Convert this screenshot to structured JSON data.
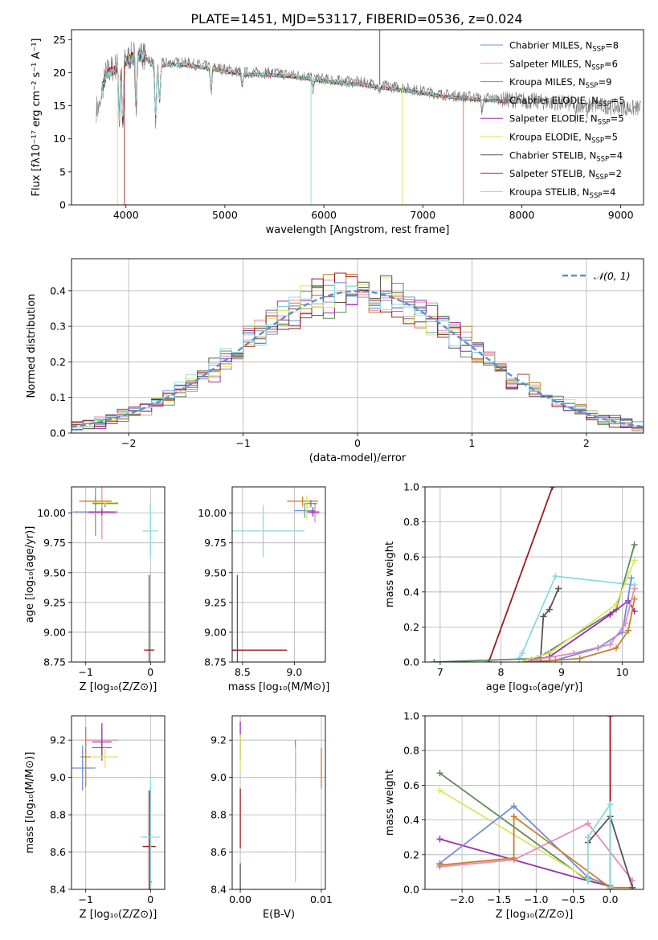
{
  "title": "PLATE=1451, MJD=53117, FIBERID=0536, z=0.024",
  "colors": {
    "Chabrier MILES": "#6f8fd8",
    "Salpeter MILES": "#e88bb9",
    "Kroupa MILES": "#c8802a",
    "Chabrier ELODIE": "#5e8a5e",
    "Salpeter ELODIE": "#9b2fae",
    "Kroupa ELODIE": "#d8e85a",
    "Chabrier STELIB": "#555555",
    "Salpeter STELIB": "#a01818",
    "Kroupa STELIB": "#88dce0",
    "orange": "#e07a1f",
    "gauss": "#5b8ed6"
  },
  "chart_data": [
    {
      "id": "spectrum",
      "type": "line",
      "xlabel": "wavelength [Angstrom, rest frame]",
      "ylabel": "Flux [fλ10⁻¹⁷ erg cm⁻² s⁻¹ A⁻¹]",
      "xlim": [
        3450,
        9230
      ],
      "ylim": [
        0,
        26.5
      ],
      "xticks": [
        4000,
        5000,
        6000,
        7000,
        8000,
        9000
      ],
      "yticks": [
        0,
        5,
        10,
        15,
        20,
        25
      ],
      "legend_position": "top-right",
      "legend": [
        {
          "text": "Chabrier MILES, N",
          "sub": "SSP",
          "suffix": "=8"
        },
        {
          "text": "Salpeter MILES, N",
          "sub": "SSP",
          "suffix": "=6"
        },
        {
          "text": "Kroupa MILES, N",
          "sub": "SSP",
          "suffix": "=9"
        },
        {
          "text": "Chabrier ELODIE, N",
          "sub": "SSP",
          "suffix": "=5"
        },
        {
          "text": "Salpeter ELODIE, N",
          "sub": "SSP",
          "suffix": "=5"
        },
        {
          "text": "Kroupa ELODIE, N",
          "sub": "SSP",
          "suffix": "=5"
        },
        {
          "text": "Chabrier STELIB, N",
          "sub": "SSP",
          "suffix": "=4"
        },
        {
          "text": "Salpeter STELIB, N",
          "sub": "SSP",
          "suffix": "=2"
        },
        {
          "text": "Kroupa STELIB, N",
          "sub": "SSP",
          "suffix": "=4"
        }
      ],
      "model_range": [
        3750,
        7950
      ],
      "envelope": [
        [
          3750,
          17
        ],
        [
          3800,
          20
        ],
        [
          3900,
          21
        ],
        [
          4000,
          22
        ],
        [
          4100,
          23
        ],
        [
          4200,
          22.5
        ],
        [
          4300,
          21
        ],
        [
          4400,
          21.5
        ],
        [
          4600,
          21.5
        ],
        [
          4800,
          21
        ],
        [
          5000,
          20.5
        ],
        [
          5200,
          20
        ],
        [
          5400,
          20
        ],
        [
          5600,
          19.8
        ],
        [
          5800,
          19.5
        ],
        [
          6000,
          19
        ],
        [
          6200,
          18.7
        ],
        [
          6400,
          18.5
        ],
        [
          6600,
          18
        ],
        [
          6800,
          17.7
        ],
        [
          7000,
          17.2
        ],
        [
          7200,
          16.7
        ],
        [
          7400,
          16.4
        ],
        [
          7600,
          16.2
        ],
        [
          7800,
          16
        ],
        [
          8000,
          15.8
        ],
        [
          8200,
          15.6
        ],
        [
          8400,
          15.4
        ],
        [
          8600,
          15.2
        ],
        [
          8800,
          15
        ],
        [
          9000,
          14.8
        ],
        [
          9100,
          14.6
        ]
      ],
      "absorptions": [
        [
          3934,
          12
        ],
        [
          3968,
          11
        ],
        [
          4102,
          14
        ],
        [
          4300,
          12
        ],
        [
          4340,
          15
        ],
        [
          4861,
          17
        ],
        [
          5175,
          17.8
        ],
        [
          5890,
          17.5
        ],
        [
          6563,
          17
        ],
        [
          7600,
          14
        ],
        [
          8542,
          13
        ],
        [
          8662,
          13
        ]
      ],
      "spikes": [
        [
          3915,
          0,
          "Kroupa ELODIE"
        ],
        [
          3985,
          0,
          "Salpeter STELIB"
        ],
        [
          5870,
          0,
          "Kroupa STELIB"
        ],
        [
          6790,
          0,
          "Kroupa ELODIE"
        ],
        [
          7410,
          0,
          "Kroupa MILES"
        ],
        [
          6565,
          26.5,
          "Chabrier STELIB"
        ]
      ]
    },
    {
      "id": "residuals",
      "type": "bar",
      "xlabel": "(data-model)/error",
      "ylabel": "Normed distribution",
      "xlim": [
        -2.5,
        2.5
      ],
      "ylim": [
        0,
        0.49
      ],
      "xticks": [
        -2,
        -1,
        0,
        1,
        2
      ],
      "yticks": [
        0.0,
        0.1,
        0.2,
        0.3,
        0.4
      ],
      "bin_width": 0.1,
      "legend": [
        {
          "text": "𝒩(0, 1)"
        }
      ],
      "legend_position": "top-right",
      "gaussian": {
        "mean": 0,
        "sigma": 1
      }
    },
    {
      "id": "z-age",
      "type": "scatter",
      "xlabel": "Z [log₁₀(Z/Z⊙)]",
      "ylabel": "age  [log₁₀(age/yr)]",
      "xlim": [
        -1.22,
        0.22
      ],
      "ylim": [
        8.75,
        10.22
      ],
      "xticks": [
        -1,
        0
      ],
      "yticks": [
        8.75,
        9.0,
        9.25,
        9.5,
        9.75,
        10.0
      ],
      "points": [
        {
          "model": "Chabrier MILES",
          "x": -0.85,
          "y": 10.01,
          "ex": 0.35,
          "ey": 0.2
        },
        {
          "model": "Salpeter MILES",
          "x": -0.75,
          "y": 10.0,
          "ex": 0.22,
          "ey": 0.22
        },
        {
          "model": "Kroupa MILES",
          "x": -0.85,
          "y": 10.1,
          "ex": 0.25,
          "ey": 0.04
        },
        {
          "model": "Chabrier ELODIE",
          "x": -0.7,
          "y": 10.08,
          "ex": 0.2,
          "ey": 0.03
        },
        {
          "model": "Salpeter ELODIE",
          "x": -0.75,
          "y": 10.01,
          "ex": 0.2,
          "ey": 0.03
        },
        {
          "model": "Kroupa ELODIE",
          "x": -0.7,
          "y": 10.09,
          "ex": 0.2,
          "ey": 0.02
        },
        {
          "model": "Chabrier STELIB",
          "x": -0.02,
          "y": 8.85,
          "ex": 0.02,
          "ey": 0.63
        },
        {
          "model": "Salpeter STELIB",
          "x": -0.02,
          "y": 8.85,
          "ex": 0.08,
          "ey": 0.0
        },
        {
          "model": "Kroupa STELIB",
          "x": 0.0,
          "y": 9.85,
          "ex": 0.12,
          "ey": 0.22
        }
      ]
    },
    {
      "id": "mass-age",
      "type": "scatter",
      "xlabel": "mass [log₁₀(M/M⊙)]",
      "ylabel": "",
      "xlim": [
        8.4,
        9.3
      ],
      "ylim": [
        8.75,
        10.22
      ],
      "xticks": [
        8.5,
        9.0
      ],
      "yticks": [
        8.75,
        9.0,
        9.25,
        9.5,
        9.75,
        10.0
      ],
      "points": [
        {
          "model": "Chabrier MILES",
          "x": 9.1,
          "y": 10.02,
          "ex": 0.1,
          "ey": 0.06
        },
        {
          "model": "Salpeter MILES",
          "x": 9.2,
          "y": 10.0,
          "ex": 0.05,
          "ey": 0.08
        },
        {
          "model": "Kroupa MILES",
          "x": 9.08,
          "y": 10.1,
          "ex": 0.15,
          "ey": 0.04
        },
        {
          "model": "Chabrier ELODIE",
          "x": 9.16,
          "y": 10.08,
          "ex": 0.06,
          "ey": 0.03
        },
        {
          "model": "Salpeter ELODIE",
          "x": 9.18,
          "y": 10.01,
          "ex": 0.06,
          "ey": 0.04
        },
        {
          "model": "Kroupa ELODIE",
          "x": 9.12,
          "y": 10.05,
          "ex": 0.05,
          "ey": 0.1
        },
        {
          "model": "Chabrier STELIB",
          "x": 8.45,
          "y": 8.85,
          "ex": 0.03,
          "ey": 0.63
        },
        {
          "model": "Salpeter STELIB",
          "x": 8.63,
          "y": 8.85,
          "ex": 0.3,
          "ey": 0.0
        },
        {
          "model": "Kroupa STELIB",
          "x": 8.7,
          "y": 9.85,
          "ex": 0.4,
          "ey": 0.22
        }
      ]
    },
    {
      "id": "age-weight",
      "type": "line",
      "xlabel": "age  [log₁₀(age/yr)]",
      "ylabel": "mass weight",
      "xlim": [
        6.75,
        10.35
      ],
      "ylim": [
        0,
        1.0
      ],
      "xticks": [
        7,
        8,
        9,
        10
      ],
      "yticks": [
        0.0,
        0.2,
        0.4,
        0.6,
        0.8,
        1.0
      ],
      "series": [
        {
          "model": "Salpeter STELIB",
          "x": [
            7.8,
            8.85
          ],
          "y": [
            0.0,
            1.0
          ]
        },
        {
          "model": "Kroupa STELIB",
          "x": [
            8.3,
            8.35,
            8.9,
            10.2
          ],
          "y": [
            0.02,
            0.05,
            0.49,
            0.44
          ]
        },
        {
          "model": "Chabrier STELIB",
          "x": [
            8.65,
            8.7,
            8.8,
            8.95
          ],
          "y": [
            0.0,
            0.26,
            0.3,
            0.42
          ]
        },
        {
          "model": "Chabrier ELODIE",
          "x": [
            6.9,
            8.6,
            9.9,
            10.2
          ],
          "y": [
            0.0,
            0.02,
            0.3,
            0.67
          ]
        },
        {
          "model": "Kroupa ELODIE",
          "x": [
            8.4,
            8.8,
            9.9,
            10.2
          ],
          "y": [
            0.01,
            0.05,
            0.33,
            0.58
          ]
        },
        {
          "model": "Salpeter ELODIE",
          "x": [
            8.5,
            8.8,
            9.8,
            10.1,
            10.2
          ],
          "y": [
            0.01,
            0.03,
            0.27,
            0.35,
            0.29
          ]
        },
        {
          "model": "Chabrier MILES",
          "x": [
            8.4,
            8.9,
            9.6,
            10.0,
            10.15
          ],
          "y": [
            0.0,
            0.01,
            0.08,
            0.17,
            0.48
          ]
        },
        {
          "model": "Salpeter MILES",
          "x": [
            8.5,
            9.2,
            9.8,
            10.05,
            10.2
          ],
          "y": [
            0.01,
            0.05,
            0.1,
            0.22,
            0.42
          ]
        },
        {
          "model": "Kroupa MILES",
          "x": [
            8.5,
            9.3,
            9.9,
            10.1,
            10.2
          ],
          "y": [
            0.0,
            0.02,
            0.08,
            0.18,
            0.36
          ]
        }
      ]
    },
    {
      "id": "z-mass",
      "type": "scatter",
      "xlabel": "Z [log₁₀(Z/Z⊙)]",
      "ylabel": "mass [log₁₀(M/M⊙)]",
      "xlim": [
        -1.22,
        0.22
      ],
      "ylim": [
        8.4,
        9.33
      ],
      "xticks": [
        -1,
        0
      ],
      "yticks": [
        8.4,
        8.6,
        8.8,
        9.0,
        9.2
      ],
      "points": [
        {
          "model": "Chabrier MILES",
          "x": -1.05,
          "y": 9.05,
          "ex": 0.2,
          "ey": 0.12
        },
        {
          "model": "Salpeter MILES",
          "x": -0.75,
          "y": 9.2,
          "ex": 0.25,
          "ey": 0.06
        },
        {
          "model": "Kroupa MILES",
          "x": -1.0,
          "y": 9.11,
          "ex": 0.08,
          "ey": 0.16
        },
        {
          "model": "Chabrier ELODIE",
          "x": -0.75,
          "y": 9.16,
          "ex": 0.15,
          "ey": 0.04
        },
        {
          "model": "Salpeter ELODIE",
          "x": -0.75,
          "y": 9.19,
          "ex": 0.15,
          "ey": 0.1
        },
        {
          "model": "Kroupa ELODIE",
          "x": -0.7,
          "y": 9.11,
          "ex": 0.2,
          "ey": 0.06
        },
        {
          "model": "Chabrier STELIB",
          "x": 0.0,
          "y": 8.44,
          "ex": 0.02,
          "ey": 0.5
        },
        {
          "model": "Salpeter STELIB",
          "x": -0.02,
          "y": 8.63,
          "ex": 0.1,
          "ey": 0.3
        },
        {
          "model": "Kroupa STELIB",
          "x": 0.0,
          "y": 8.68,
          "ex": 0.15,
          "ey": 0.32
        }
      ]
    },
    {
      "id": "ebv-mass",
      "type": "scatter",
      "xlabel": "E(B-V)",
      "ylabel": "",
      "xlim": [
        -0.001,
        0.0105
      ],
      "ylim": [
        8.4,
        9.33
      ],
      "xticks": [
        0.0,
        0.01
      ],
      "yticks": [
        8.4,
        8.6,
        8.8,
        9.0,
        9.2
      ],
      "points": [
        {
          "model": "Salpeter ELODIE",
          "x": 0.0,
          "y": 9.2,
          "ex": 0,
          "ey": 0.1
        },
        {
          "model": "Kroupa ELODIE",
          "x": 0.0,
          "y": 9.13,
          "ex": 0,
          "ey": 0.1
        },
        {
          "model": "Salpeter STELIB",
          "x": 0.0,
          "y": 8.78,
          "ex": 0,
          "ey": 0.16
        },
        {
          "model": "Chabrier STELIB",
          "x": 0.0,
          "y": 8.42,
          "ex": 0,
          "ey": 0.12
        },
        {
          "model": "Chabrier MILES",
          "x": 0.0068,
          "y": 9.05,
          "ex": 0,
          "ey": 0.15
        },
        {
          "model": "Kroupa STELIB",
          "x": 0.0068,
          "y": 8.8,
          "ex": 0,
          "ey": 0.36
        },
        {
          "model": "Kroupa MILES",
          "x": 0.01,
          "y": 9.05,
          "ex": 0,
          "ey": 0.11
        }
      ]
    },
    {
      "id": "z-weight",
      "type": "line",
      "xlabel": "Z [log₁₀(Z/Z⊙)]",
      "ylabel": "mass weight",
      "xlim": [
        -2.5,
        0.45
      ],
      "ylim": [
        0,
        1.0
      ],
      "xticks": [
        -2.0,
        -1.5,
        -1.0,
        -0.5,
        0.0
      ],
      "yticks": [
        0.0,
        0.2,
        0.4,
        0.6,
        0.8,
        1.0
      ],
      "series": [
        {
          "model": "Salpeter STELIB",
          "x": [
            0.0,
            0.0
          ],
          "y": [
            0.0,
            1.0
          ]
        },
        {
          "model": "Chabrier ELODIE",
          "x": [
            -2.3,
            -0.3,
            0.0
          ],
          "y": [
            0.67,
            0.05,
            0.02
          ]
        },
        {
          "model": "Kroupa ELODIE",
          "x": [
            -2.3,
            -0.3,
            0.0
          ],
          "y": [
            0.57,
            0.06,
            0.01
          ]
        },
        {
          "model": "Salpeter ELODIE",
          "x": [
            -2.3,
            -0.3,
            0.0
          ],
          "y": [
            0.29,
            0.05,
            0.02
          ]
        },
        {
          "model": "Salpeter MILES",
          "x": [
            -2.3,
            -1.3,
            -0.3,
            0.3
          ],
          "y": [
            0.13,
            0.17,
            0.38,
            0.05
          ]
        },
        {
          "model": "Chabrier MILES",
          "x": [
            -2.3,
            -1.3,
            -0.3,
            0.0
          ],
          "y": [
            0.15,
            0.48,
            0.07,
            0.02
          ]
        },
        {
          "model": "Kroupa MILES",
          "x": [
            -2.3,
            -1.3,
            -1.3,
            0.0,
            0.3
          ],
          "y": [
            0.14,
            0.18,
            0.42,
            0.01,
            0.01
          ]
        },
        {
          "model": "Chabrier STELIB",
          "x": [
            -0.3,
            0.0,
            0.3
          ],
          "y": [
            0.27,
            0.42,
            0.01
          ]
        },
        {
          "model": "Kroupa STELIB",
          "x": [
            -0.3,
            -0.3,
            0.0,
            0.0
          ],
          "y": [
            0.05,
            0.3,
            0.49,
            0.01
          ]
        }
      ]
    }
  ]
}
